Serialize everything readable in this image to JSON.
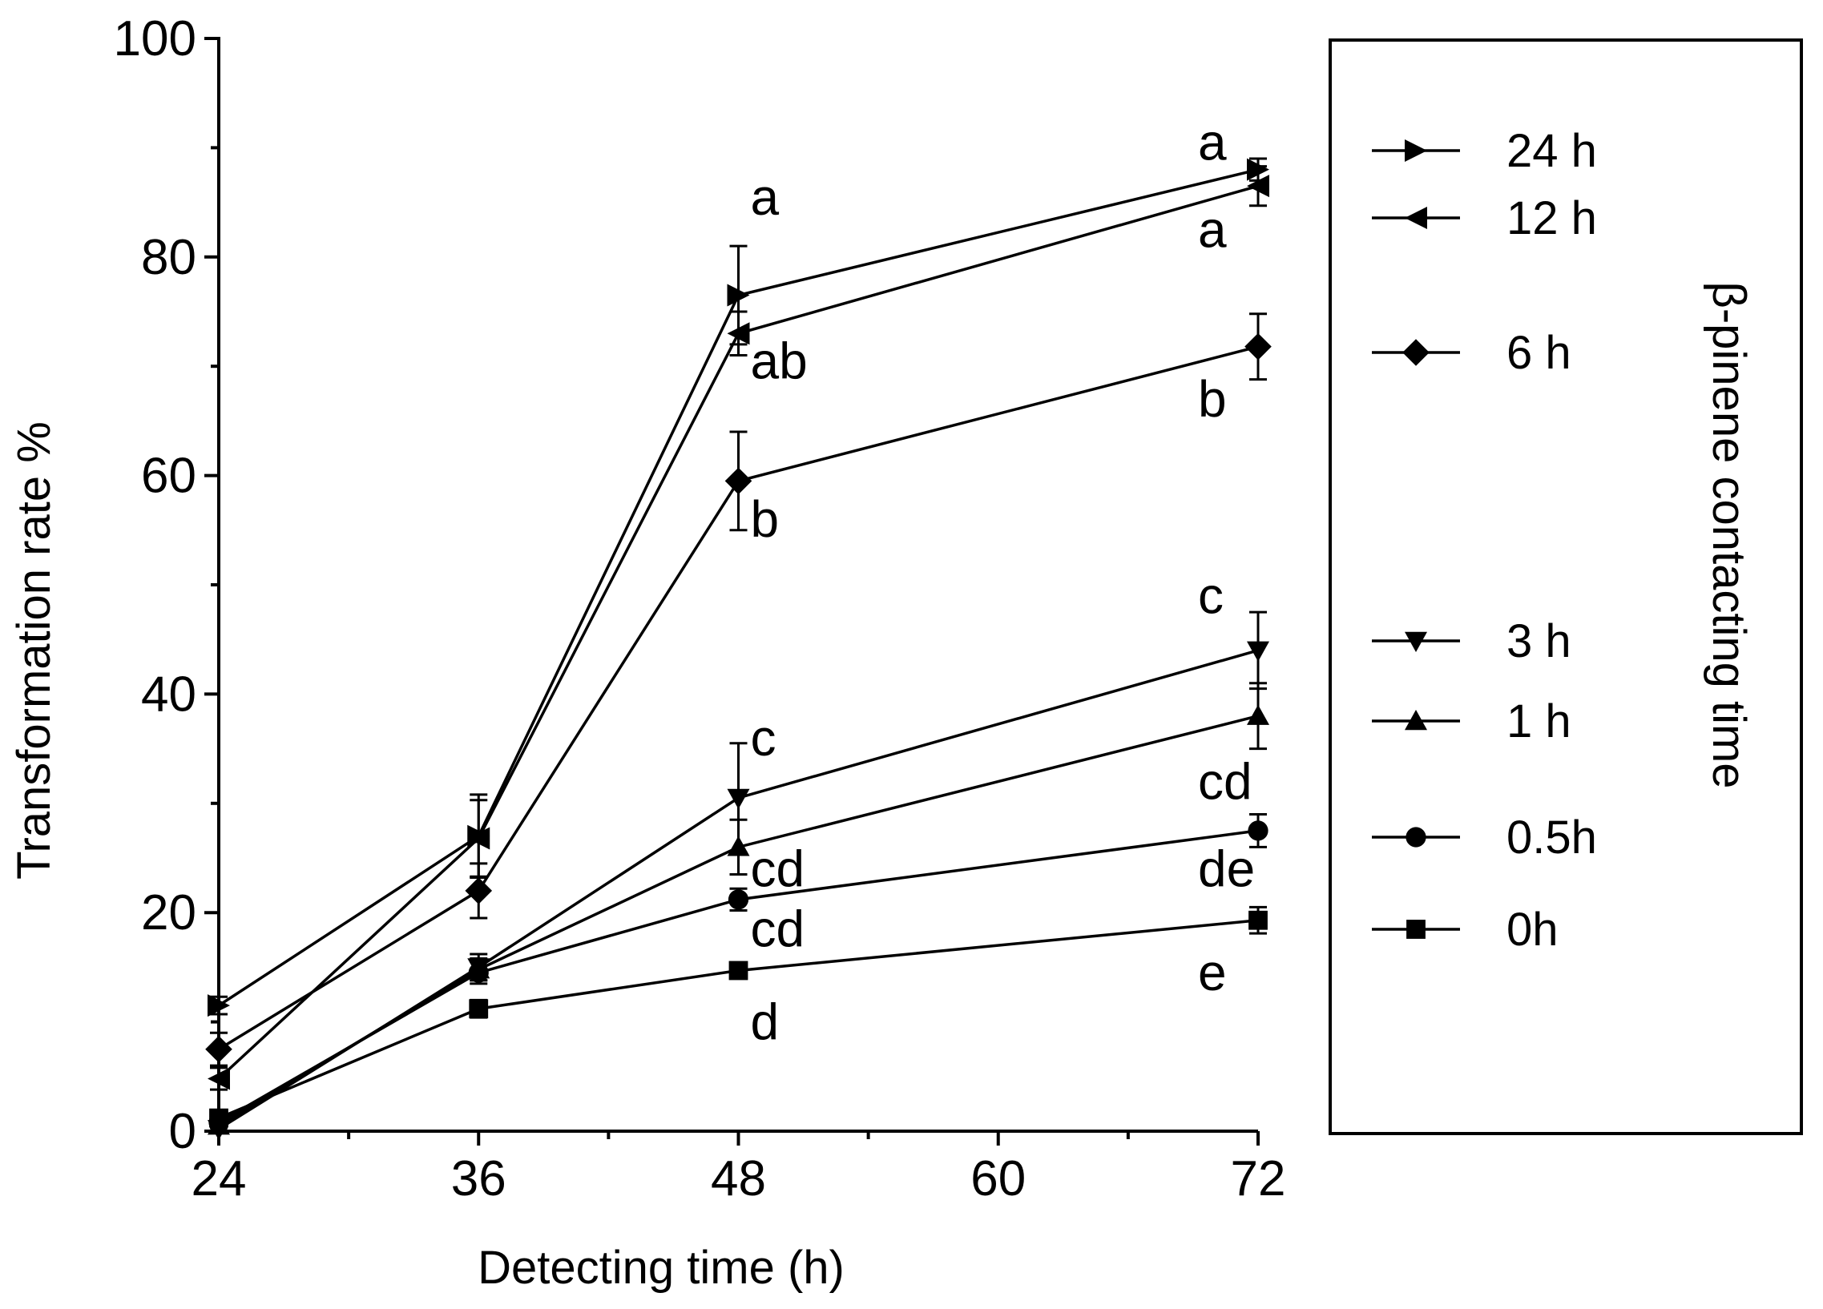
{
  "chart_data": {
    "type": "line",
    "title": "",
    "xlabel": "Detecting time (h)",
    "ylabel": "Transformation rate %",
    "x": [
      24,
      36,
      48,
      72
    ],
    "xlim": [
      24,
      72
    ],
    "ylim": [
      0,
      100
    ],
    "x_ticks": [
      "24",
      "36",
      "48",
      "60",
      "72"
    ],
    "y_ticks": [
      "0",
      "20",
      "40",
      "60",
      "80",
      "100"
    ],
    "legend": {
      "title": "β-pinene contacting time",
      "position": "right",
      "entries": [
        "24 h",
        "12 h",
        "6 h",
        "3 h",
        "1 h",
        "0.5h",
        "0h"
      ]
    },
    "series": [
      {
        "name": "24 h",
        "marker": "triangle-right",
        "values": [
          11.5,
          27.0,
          76.5,
          88.0
        ],
        "errors": [
          0.8,
          3.8,
          4.5,
          1.0
        ]
      },
      {
        "name": "12 h",
        "marker": "triangle-left",
        "values": [
          4.8,
          26.8,
          73.0,
          86.5
        ],
        "errors": [
          1.0,
          3.5,
          2.0,
          1.8
        ]
      },
      {
        "name": "6 h",
        "marker": "diamond",
        "values": [
          7.5,
          22.0,
          59.5,
          71.8
        ],
        "errors": [
          1.5,
          2.5,
          4.5,
          3.0
        ]
      },
      {
        "name": "3 h",
        "marker": "triangle-down",
        "values": [
          0.2,
          15.0,
          30.5,
          44.0
        ],
        "errors": [
          0.5,
          1.2,
          5.0,
          3.5
        ]
      },
      {
        "name": "1 h",
        "marker": "triangle-up",
        "values": [
          0.5,
          14.8,
          26.0,
          38.0
        ],
        "errors": [
          0.5,
          1.0,
          2.5,
          3.0
        ]
      },
      {
        "name": "0.5h",
        "marker": "circle",
        "values": [
          0.8,
          14.5,
          21.2,
          27.5
        ],
        "errors": [
          0.5,
          1.0,
          1.0,
          1.5
        ]
      },
      {
        "name": "0h",
        "marker": "square",
        "values": [
          1.2,
          11.2,
          14.7,
          19.3
        ],
        "errors": [
          0.5,
          0.8,
          0.5,
          1.2
        ]
      }
    ],
    "annotations": [
      {
        "text": "a",
        "x": 48,
        "y": 85.5
      },
      {
        "text": "ab",
        "x": 48,
        "y": 70.5
      },
      {
        "text": "b",
        "x": 48,
        "y": 56.0
      },
      {
        "text": "c",
        "x": 48,
        "y": 36.0
      },
      {
        "text": "cd",
        "x": 48,
        "y": 24.0
      },
      {
        "text": "cd",
        "x": 48,
        "y": 18.5
      },
      {
        "text": "d",
        "x": 48,
        "y": 10.0
      },
      {
        "text": "a",
        "x": 72,
        "y": 90.5
      },
      {
        "text": "a",
        "x": 72,
        "y": 82.5
      },
      {
        "text": "b",
        "x": 72,
        "y": 67.0
      },
      {
        "text": "c",
        "x": 72,
        "y": 49.0
      },
      {
        "text": "cd",
        "x": 72,
        "y": 32.0
      },
      {
        "text": "de",
        "x": 72,
        "y": 24.0
      },
      {
        "text": "e",
        "x": 72,
        "y": 14.5
      }
    ]
  }
}
